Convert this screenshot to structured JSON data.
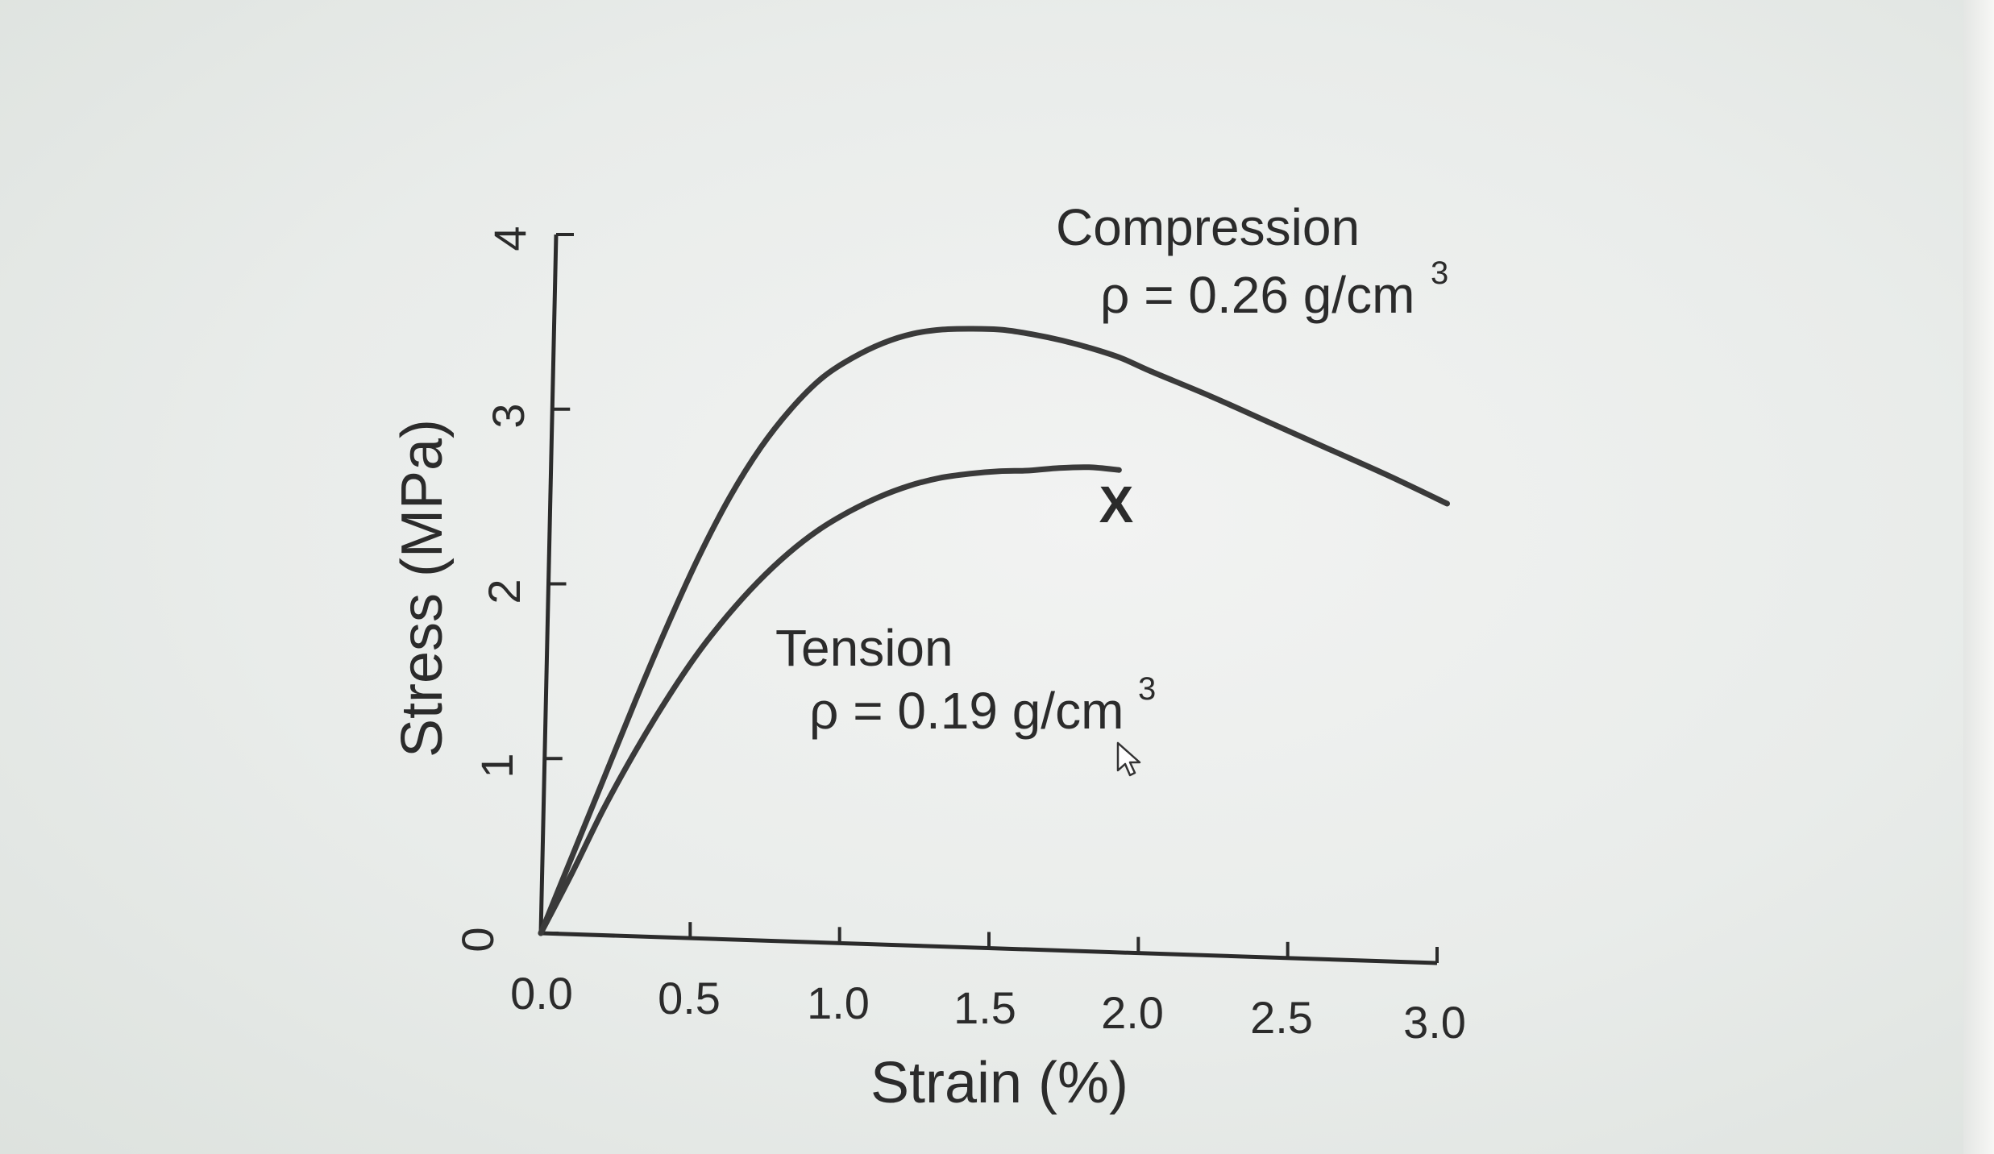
{
  "chart_data": {
    "type": "line",
    "xlabel": "Strain (%)",
    "ylabel": "Stress (MPa)",
    "xlim": [
      0.0,
      3.0
    ],
    "ylim": [
      0,
      4
    ],
    "x_ticks": [
      "0.0",
      "0.5",
      "1.0",
      "1.5",
      "2.0",
      "2.5",
      "3.0"
    ],
    "y_ticks": [
      "0",
      "1",
      "2",
      "3",
      "4"
    ],
    "grid": false,
    "series": [
      {
        "name": "Compression",
        "density_label": "ρ = 0.26 g/cm",
        "x": [
          0.0,
          0.1,
          0.2,
          0.3,
          0.4,
          0.5,
          0.6,
          0.7,
          0.8,
          0.9,
          1.0,
          1.1,
          1.2,
          1.3,
          1.4,
          1.5,
          1.6,
          1.7,
          1.8,
          1.9,
          2.0,
          2.2,
          2.4,
          2.6,
          2.8,
          3.0
        ],
        "y": [
          0.0,
          0.45,
          0.9,
          1.35,
          1.78,
          2.18,
          2.53,
          2.82,
          3.05,
          3.23,
          3.35,
          3.44,
          3.5,
          3.53,
          3.54,
          3.54,
          3.52,
          3.49,
          3.45,
          3.4,
          3.33,
          3.2,
          3.06,
          2.92,
          2.78,
          2.63
        ]
      },
      {
        "name": "Tension",
        "density_label": "ρ = 0.19 g/cm",
        "x": [
          0.0,
          0.1,
          0.2,
          0.3,
          0.4,
          0.5,
          0.6,
          0.7,
          0.8,
          0.9,
          1.0,
          1.1,
          1.2,
          1.3,
          1.4,
          1.5,
          1.6,
          1.7,
          1.8,
          1.9
        ],
        "y": [
          0.0,
          0.35,
          0.72,
          1.05,
          1.35,
          1.62,
          1.85,
          2.05,
          2.22,
          2.36,
          2.47,
          2.56,
          2.63,
          2.68,
          2.71,
          2.73,
          2.74,
          2.76,
          2.77,
          2.76
        ]
      }
    ],
    "annotations": {
      "compression_title": "Compression",
      "compression_density": "ρ = 0.26 g/cm",
      "tension_title": "Tension",
      "tension_density": "ρ = 0.19 g/cm",
      "exponent": "3",
      "failure_marker": "X"
    },
    "colors": {
      "line": "#3a3a3a",
      "axis": "#2b2b2b",
      "text": "#2b2b2b"
    }
  }
}
